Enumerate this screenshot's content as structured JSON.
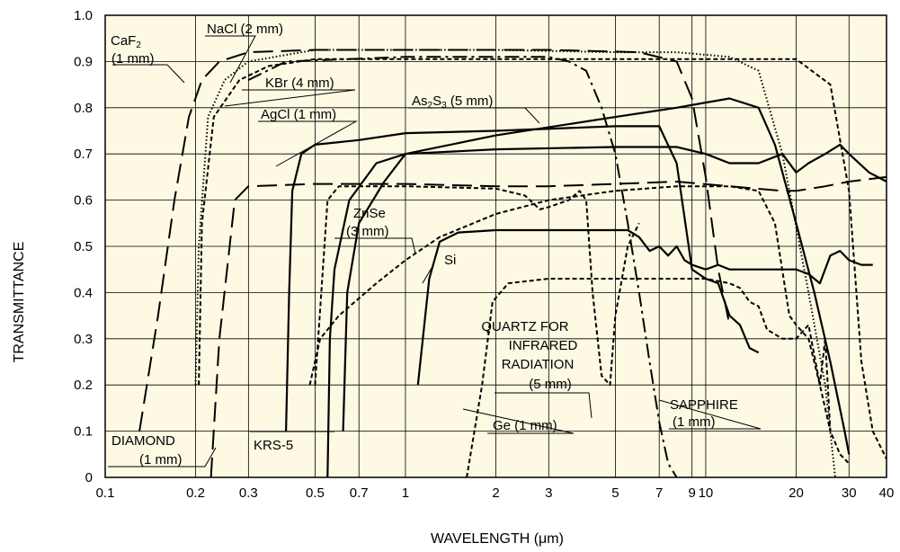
{
  "chart_data": {
    "type": "line",
    "title": "",
    "xlabel": "WAVELENGTH (μm)",
    "ylabel": "TRANSMITTANCE",
    "xscale": "log",
    "xlim": [
      0.1,
      40
    ],
    "ylim": [
      0,
      1.0
    ],
    "grid": true,
    "background": "#fdf9e3",
    "x_ticks": [
      0.1,
      0.2,
      0.3,
      0.5,
      0.7,
      1,
      2,
      3,
      5,
      7,
      9,
      10,
      20,
      30,
      40
    ],
    "x_tick_labels": [
      "0.1",
      "0.2",
      "0.3",
      "0.5",
      "0.7",
      "1",
      "2",
      "3",
      "5",
      "7",
      "9",
      "10",
      "20",
      "30",
      "40"
    ],
    "y_ticks": [
      0,
      0.1,
      0.2,
      0.3,
      0.4,
      0.5,
      0.6,
      0.7,
      0.8,
      0.9,
      1.0
    ],
    "y_tick_labels": [
      "0",
      "0.1",
      "0.2",
      "0.3",
      "0.4",
      "0.5",
      "0.6",
      "0.7",
      "0.8",
      "0.9",
      "1.0"
    ],
    "labels": [
      {
        "text": "CaF",
        "sub": "2",
        "after": ""
      },
      {
        "text": "(1 mm)"
      },
      {
        "text": "NaCl (2 mm)"
      },
      {
        "text": "KBr (4 mm)"
      },
      {
        "text": "AgCl (1 mm)"
      },
      {
        "text": "As",
        "sub": "2",
        "mid": "S",
        "sub2": "3",
        "after": " (5 mm)"
      },
      {
        "text": "ZnSe"
      },
      {
        "text": "(3 mm)"
      },
      {
        "text": "Si"
      },
      {
        "text": "QUARTZ FOR"
      },
      {
        "text": "INFRARED"
      },
      {
        "text": "RADIATION"
      },
      {
        "text": "(5 mm)"
      },
      {
        "text": "Ge (1 mm)"
      },
      {
        "text": "SAPPHIRE"
      },
      {
        "text": "(1 mm)"
      },
      {
        "text": "DIAMOND"
      },
      {
        "text": "(1 mm)"
      },
      {
        "text": "KRS-5"
      }
    ],
    "series": [
      {
        "name": "CaF2 (1 mm)",
        "style": "longdash",
        "points": [
          [
            0.13,
            0.1
          ],
          [
            0.15,
            0.35
          ],
          [
            0.17,
            0.6
          ],
          [
            0.19,
            0.78
          ],
          [
            0.21,
            0.86
          ],
          [
            0.24,
            0.9
          ],
          [
            0.3,
            0.92
          ],
          [
            0.5,
            0.925
          ],
          [
            1,
            0.925
          ],
          [
            3,
            0.925
          ],
          [
            6,
            0.92
          ],
          [
            8,
            0.9
          ],
          [
            9,
            0.82
          ],
          [
            10,
            0.65
          ],
          [
            11,
            0.45
          ],
          [
            12,
            0.33
          ]
        ]
      },
      {
        "name": "NaCl (2 mm)",
        "style": "dotted",
        "points": [
          [
            0.2,
            0.2
          ],
          [
            0.205,
            0.5
          ],
          [
            0.22,
            0.78
          ],
          [
            0.25,
            0.86
          ],
          [
            0.3,
            0.9
          ],
          [
            0.5,
            0.925
          ],
          [
            1,
            0.925
          ],
          [
            2,
            0.925
          ],
          [
            5,
            0.92
          ],
          [
            8,
            0.92
          ],
          [
            12,
            0.91
          ],
          [
            15,
            0.88
          ],
          [
            18,
            0.7
          ],
          [
            22,
            0.4
          ],
          [
            25,
            0.2
          ],
          [
            27,
            0.0
          ]
        ]
      },
      {
        "name": "KBr (4 mm)",
        "style": "shortdash",
        "points": [
          [
            0.205,
            0.2
          ],
          [
            0.21,
            0.55
          ],
          [
            0.23,
            0.78
          ],
          [
            0.28,
            0.86
          ],
          [
            0.35,
            0.89
          ],
          [
            0.5,
            0.905
          ],
          [
            1,
            0.905
          ],
          [
            5,
            0.905
          ],
          [
            10,
            0.905
          ],
          [
            20,
            0.905
          ],
          [
            26,
            0.85
          ],
          [
            30,
            0.62
          ],
          [
            33,
            0.25
          ],
          [
            36,
            0.1
          ],
          [
            40,
            0.04
          ]
        ]
      },
      {
        "name": "AgCl (1 mm)",
        "style": "solid",
        "points": [
          [
            0.4,
            0.1
          ],
          [
            0.41,
            0.4
          ],
          [
            0.42,
            0.62
          ],
          [
            0.45,
            0.7
          ],
          [
            0.5,
            0.72
          ],
          [
            0.7,
            0.73
          ],
          [
            1,
            0.745
          ],
          [
            2,
            0.75
          ],
          [
            5,
            0.76
          ],
          [
            7,
            0.76
          ],
          [
            8,
            0.68
          ],
          [
            9,
            0.45
          ],
          [
            10,
            0.43
          ],
          [
            11,
            0.42
          ],
          [
            12,
            0.35
          ],
          [
            13,
            0.33
          ],
          [
            14,
            0.28
          ],
          [
            15,
            0.27
          ]
        ]
      },
      {
        "name": "As2S3 (5 mm)",
        "style": "solid",
        "points": [
          [
            0.62,
            0.1
          ],
          [
            0.64,
            0.4
          ],
          [
            0.7,
            0.55
          ],
          [
            0.85,
            0.64
          ],
          [
            1,
            0.7
          ],
          [
            2,
            0.74
          ],
          [
            5,
            0.78
          ],
          [
            8,
            0.8
          ],
          [
            12,
            0.82
          ],
          [
            15,
            0.8
          ],
          [
            17,
            0.72
          ],
          [
            20,
            0.55
          ],
          [
            23,
            0.4
          ],
          [
            26,
            0.25
          ],
          [
            29,
            0.1
          ],
          [
            30,
            0.05
          ]
        ]
      },
      {
        "name": "ZnSe (3 mm)",
        "style": "shortdash",
        "points": [
          [
            0.48,
            0.2
          ],
          [
            0.52,
            0.3
          ],
          [
            0.6,
            0.35
          ],
          [
            0.8,
            0.42
          ],
          [
            1,
            0.47
          ],
          [
            1.3,
            0.52
          ],
          [
            2,
            0.57
          ],
          [
            3,
            0.6
          ],
          [
            5,
            0.62
          ],
          [
            8,
            0.63
          ],
          [
            12,
            0.63
          ],
          [
            15,
            0.62
          ],
          [
            17,
            0.55
          ],
          [
            19,
            0.35
          ],
          [
            20,
            0.33
          ],
          [
            22,
            0.3
          ],
          [
            24,
            0.2
          ],
          [
            26,
            0.1
          ]
        ]
      },
      {
        "name": "Si",
        "style": "solid",
        "points": [
          [
            1.1,
            0.2
          ],
          [
            1.2,
            0.43
          ],
          [
            1.3,
            0.51
          ],
          [
            1.5,
            0.53
          ],
          [
            2,
            0.535
          ],
          [
            4,
            0.535
          ],
          [
            5.5,
            0.535
          ],
          [
            6,
            0.52
          ],
          [
            6.5,
            0.49
          ],
          [
            7,
            0.5
          ],
          [
            7.5,
            0.48
          ],
          [
            8,
            0.5
          ],
          [
            8.5,
            0.47
          ],
          [
            9,
            0.46
          ],
          [
            10,
            0.45
          ],
          [
            11,
            0.46
          ],
          [
            12,
            0.45
          ],
          [
            15,
            0.45
          ],
          [
            18,
            0.45
          ],
          [
            20,
            0.45
          ],
          [
            22,
            0.44
          ],
          [
            24,
            0.42
          ],
          [
            26,
            0.48
          ],
          [
            28,
            0.49
          ],
          [
            30,
            0.47
          ],
          [
            33,
            0.46
          ],
          [
            36,
            0.46
          ]
        ]
      },
      {
        "name": "QUARTZ FOR INFRARED RADIATION (5 mm)",
        "style": "shortdash",
        "points": [
          [
            0.5,
            0.2
          ],
          [
            0.55,
            0.6
          ],
          [
            0.6,
            0.63
          ],
          [
            1,
            0.63
          ],
          [
            2,
            0.625
          ],
          [
            2.5,
            0.61
          ],
          [
            2.8,
            0.58
          ],
          [
            3,
            0.585
          ],
          [
            3.5,
            0.6
          ],
          [
            3.8,
            0.62
          ],
          [
            4,
            0.6
          ],
          [
            4.2,
            0.4
          ],
          [
            4.5,
            0.22
          ],
          [
            4.8,
            0.2
          ],
          [
            5,
            0.35
          ],
          [
            5.5,
            0.5
          ],
          [
            6,
            0.55
          ]
        ]
      },
      {
        "name": "Ge (1 mm)",
        "style": "shortdash",
        "points": [
          [
            1.6,
            0.0
          ],
          [
            1.8,
            0.2
          ],
          [
            1.95,
            0.38
          ],
          [
            2.2,
            0.42
          ],
          [
            3,
            0.43
          ],
          [
            5,
            0.43
          ],
          [
            10,
            0.43
          ],
          [
            12,
            0.42
          ],
          [
            13,
            0.41
          ],
          [
            14,
            0.38
          ],
          [
            15,
            0.37
          ],
          [
            16,
            0.32
          ],
          [
            18,
            0.3
          ],
          [
            20,
            0.3
          ],
          [
            22,
            0.33
          ],
          [
            24,
            0.2
          ],
          [
            25,
            0.3
          ],
          [
            26,
            0.1
          ],
          [
            28,
            0.05
          ],
          [
            30,
            0.03
          ]
        ]
      },
      {
        "name": "SAPPHIRE (1 mm)",
        "style": "dashdot",
        "points": [
          [
            0.3,
            0.86
          ],
          [
            0.4,
            0.9
          ],
          [
            1,
            0.91
          ],
          [
            2,
            0.91
          ],
          [
            3,
            0.91
          ],
          [
            3.5,
            0.9
          ],
          [
            4,
            0.88
          ],
          [
            4.5,
            0.8
          ],
          [
            5,
            0.7
          ],
          [
            5.5,
            0.55
          ],
          [
            6,
            0.4
          ],
          [
            6.5,
            0.25
          ],
          [
            7,
            0.12
          ],
          [
            7.5,
            0.03
          ],
          [
            8,
            0.0
          ]
        ]
      },
      {
        "name": "DIAMOND (1 mm)",
        "style": "longdash",
        "points": [
          [
            0.225,
            0.0
          ],
          [
            0.24,
            0.3
          ],
          [
            0.27,
            0.6
          ],
          [
            0.3,
            0.63
          ],
          [
            0.5,
            0.635
          ],
          [
            1,
            0.635
          ],
          [
            2,
            0.63
          ],
          [
            3,
            0.63
          ],
          [
            5,
            0.635
          ],
          [
            8,
            0.64
          ],
          [
            12,
            0.63
          ],
          [
            18,
            0.62
          ],
          [
            20,
            0.62
          ],
          [
            25,
            0.63
          ],
          [
            30,
            0.64
          ],
          [
            40,
            0.65
          ]
        ]
      },
      {
        "name": "KRS-5",
        "style": "solid",
        "points": [
          [
            0.55,
            0.0
          ],
          [
            0.56,
            0.3
          ],
          [
            0.58,
            0.45
          ],
          [
            0.65,
            0.6
          ],
          [
            0.8,
            0.68
          ],
          [
            1,
            0.7
          ],
          [
            2,
            0.71
          ],
          [
            5,
            0.715
          ],
          [
            8,
            0.715
          ],
          [
            10,
            0.7
          ],
          [
            12,
            0.68
          ],
          [
            15,
            0.68
          ],
          [
            18,
            0.7
          ],
          [
            20,
            0.66
          ],
          [
            22,
            0.68
          ],
          [
            25,
            0.7
          ],
          [
            28,
            0.72
          ],
          [
            30,
            0.7
          ],
          [
            35,
            0.66
          ],
          [
            40,
            0.64
          ]
        ]
      }
    ]
  }
}
